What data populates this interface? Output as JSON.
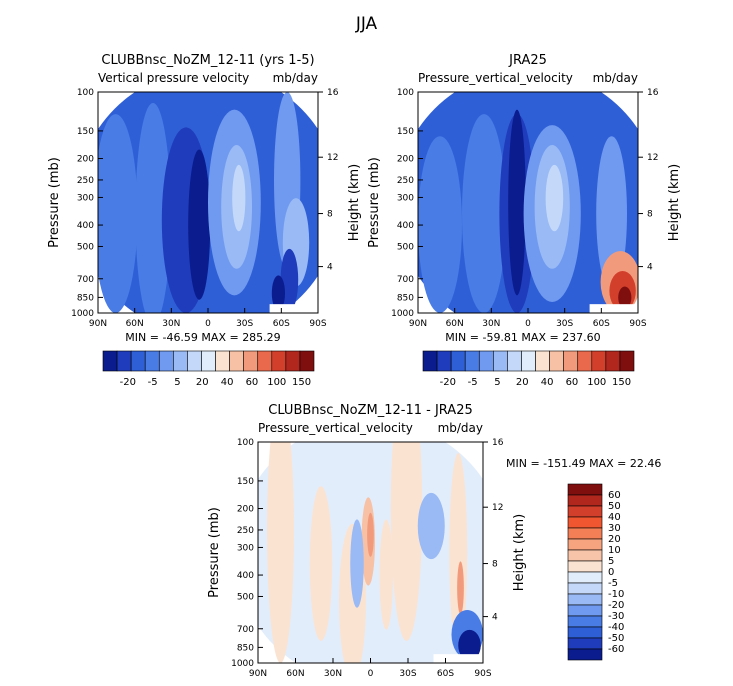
{
  "page_title": "JJA",
  "chart_data": [
    {
      "type": "heatmap",
      "title": "CLUBBnsc_NoZM_12-11 (yrs 1-5)",
      "subtitle_left": "Vertical pressure velocity",
      "subtitle_right": "mb/day",
      "xlabel": "",
      "ylabel": "Pressure (mb)",
      "y2label": "Height (km)",
      "x_ticks": [
        "90N",
        "60N",
        "30N",
        "0",
        "30S",
        "60S",
        "90S"
      ],
      "y_ticks": [
        "100",
        "150",
        "200",
        "250",
        "300",
        "400",
        "500",
        "700",
        "850",
        "1000"
      ],
      "y2_ticks": [
        "16",
        "12",
        "8",
        "4"
      ],
      "min_max_text": "MIN = -46.59   MAX = 285.29",
      "colorbar": {
        "orientation": "horizontal",
        "labels": [
          "-20",
          "-5",
          "5",
          "20",
          "40",
          "60",
          "100",
          "150"
        ],
        "colors": [
          "#0a1c8e",
          "#1f3cbc",
          "#2f5fd6",
          "#4a7ce6",
          "#6f9af0",
          "#99baf5",
          "#c4d8fa",
          "#e2edfc",
          "#fbe3d2",
          "#f7c1a6",
          "#f29b7c",
          "#e8694c",
          "#d2402c",
          "#b1271e",
          "#7f0f0f"
        ]
      }
    },
    {
      "type": "heatmap",
      "title": "JRA25",
      "subtitle_left": "Pressure_vertical_velocity",
      "subtitle_right": "mb/day",
      "xlabel": "",
      "ylabel": "Pressure (mb)",
      "y2label": "Height (km)",
      "x_ticks": [
        "90N",
        "60N",
        "30N",
        "0",
        "30S",
        "60S",
        "90S"
      ],
      "y_ticks": [
        "100",
        "150",
        "200",
        "250",
        "300",
        "400",
        "500",
        "700",
        "850",
        "1000"
      ],
      "y2_ticks": [
        "16",
        "12",
        "8",
        "4"
      ],
      "min_max_text": "MIN = -59.81   MAX = 237.60",
      "colorbar": {
        "orientation": "horizontal",
        "labels": [
          "-20",
          "-5",
          "5",
          "20",
          "40",
          "60",
          "100",
          "150"
        ],
        "colors": [
          "#0a1c8e",
          "#1f3cbc",
          "#2f5fd6",
          "#4a7ce6",
          "#6f9af0",
          "#99baf5",
          "#c4d8fa",
          "#e2edfc",
          "#fbe3d2",
          "#f7c1a6",
          "#f29b7c",
          "#e8694c",
          "#d2402c",
          "#b1271e",
          "#7f0f0f"
        ]
      }
    },
    {
      "type": "heatmap",
      "title": "CLUBBnsc_NoZM_12-11 - JRA25",
      "subtitle_left": "Pressure_vertical_velocity",
      "subtitle_right": "mb/day",
      "xlabel": "",
      "ylabel": "Pressure (mb)",
      "y2label": "Height (km)",
      "x_ticks": [
        "90N",
        "60N",
        "30N",
        "0",
        "30S",
        "60S",
        "90S"
      ],
      "y_ticks": [
        "100",
        "150",
        "200",
        "250",
        "300",
        "400",
        "500",
        "700",
        "850",
        "1000"
      ],
      "y2_ticks": [
        "16",
        "12",
        "8",
        "4"
      ],
      "min_max_text": "MIN = -151.49   MAX =  22.46",
      "colorbar": {
        "orientation": "vertical",
        "labels": [
          "60",
          "50",
          "40",
          "30",
          "20",
          "10",
          "5",
          "0",
          "-5",
          "-10",
          "-20",
          "-30",
          "-40",
          "-50",
          "-60"
        ],
        "colors": [
          "#7f0f0f",
          "#b1271e",
          "#d2402c",
          "#f0562f",
          "#f27f55",
          "#f5a47f",
          "#f8c4a9",
          "#fbe3d2",
          "#e2edfc",
          "#c4d8fa",
          "#99baf5",
          "#6f9af0",
          "#4a7ce6",
          "#2f5fd6",
          "#1f3cbc",
          "#0a1c8e"
        ]
      }
    }
  ]
}
